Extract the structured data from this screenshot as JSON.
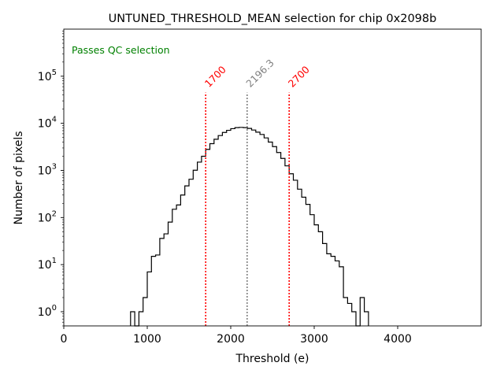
{
  "chart_data": {
    "type": "histogram",
    "title": "UNTUNED_THRESHOLD_MEAN selection for chip 0x2098b",
    "xlabel": "Threshold (e)",
    "ylabel": "Number of pixels",
    "xlim": [
      0,
      5000
    ],
    "ylim": [
      0.5,
      1000000
    ],
    "yscale": "log",
    "xticks": [
      0,
      1000,
      2000,
      3000,
      4000
    ],
    "xtick_labels": [
      "0",
      "1000",
      "2000",
      "3000",
      "4000"
    ],
    "yticks": [
      1,
      10,
      100,
      1000,
      10000,
      100000
    ],
    "ytick_labels": [
      {
        "base": "10",
        "exp": "0"
      },
      {
        "base": "10",
        "exp": "1"
      },
      {
        "base": "10",
        "exp": "2"
      },
      {
        "base": "10",
        "exp": "3"
      },
      {
        "base": "10",
        "exp": "4"
      },
      {
        "base": "10",
        "exp": "5"
      }
    ],
    "bin_width": 50,
    "bin_start": 800,
    "counts": [
      1,
      0,
      1,
      2,
      7,
      15,
      16,
      36,
      45,
      80,
      150,
      185,
      300,
      470,
      650,
      1010,
      1500,
      2000,
      2800,
      3700,
      4600,
      5500,
      6400,
      7100,
      7700,
      8100,
      8200,
      8100,
      7800,
      7200,
      6500,
      5800,
      4900,
      4000,
      3200,
      2400,
      1800,
      1250,
      850,
      620,
      400,
      270,
      190,
      115,
      70,
      50,
      28,
      17,
      15,
      12,
      9,
      2,
      1.5,
      1,
      0,
      2,
      1
    ],
    "color_histogram": "#000000",
    "annotation": "Passes QC selection",
    "annotation_color": "#008000",
    "vlines": [
      {
        "x": 1700,
        "label": "1700",
        "color": "#ff0000"
      },
      {
        "x": 2196.3,
        "label": "2196.3",
        "color": "#808080"
      },
      {
        "x": 2700,
        "label": "2700",
        "color": "#ff0000"
      }
    ]
  }
}
